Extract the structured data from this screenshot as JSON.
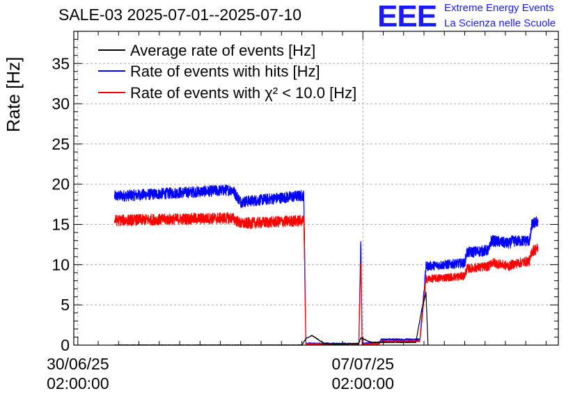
{
  "chart_data": {
    "type": "line",
    "title": "SALE-03 2025-07-01--2025-07-10",
    "ylabel": "Rate [Hz]",
    "xlabel": "",
    "ylim": [
      0,
      39
    ],
    "yticks": [
      0,
      5,
      10,
      15,
      20,
      25,
      30,
      35
    ],
    "x_tick_labels": [
      {
        "date": "30/06/25",
        "time": "02:00:00",
        "day": 0
      },
      {
        "date": "07/07/25",
        "time": "02:00:00",
        "day": 7
      }
    ],
    "xlim_days": [
      -0.1,
      11.8
    ],
    "grid": true,
    "legend_position": "top-left",
    "series": [
      {
        "name": "Average rate of events [Hz]",
        "color": "#000000",
        "noise": 0.3,
        "points": [
          [
            0.9,
            0
          ],
          [
            5.5,
            0
          ],
          [
            5.6,
            0.8
          ],
          [
            5.75,
            1.2
          ],
          [
            5.9,
            0.7
          ],
          [
            6.05,
            0.2
          ],
          [
            6.45,
            0.15
          ],
          [
            6.9,
            0.2
          ],
          [
            6.95,
            0.9
          ],
          [
            7.2,
            0.35
          ],
          [
            8.3,
            0.35
          ],
          [
            8.45,
            4.5
          ],
          [
            8.55,
            6.5
          ],
          [
            8.6,
            0
          ]
        ]
      },
      {
        "name": "Rate of events with hits [Hz]",
        "color": "#0000ff",
        "noise": 0.7,
        "points": [
          [
            0.9,
            18.5
          ],
          [
            3.8,
            19.3
          ],
          [
            4.0,
            17.8
          ],
          [
            5.55,
            18.6
          ],
          [
            5.6,
            0.2
          ],
          [
            6.9,
            0.15
          ],
          [
            6.95,
            13.5
          ],
          [
            6.98,
            0.2
          ],
          [
            7.4,
            0.3
          ],
          [
            7.45,
            0.7
          ],
          [
            8.4,
            0.7
          ],
          [
            8.55,
            9.8
          ],
          [
            9.5,
            10.2
          ],
          [
            9.55,
            11.5
          ],
          [
            10.1,
            11.8
          ],
          [
            10.15,
            13.0
          ],
          [
            10.6,
            12.6
          ],
          [
            10.65,
            12.9
          ],
          [
            11.1,
            13.0
          ],
          [
            11.15,
            15.0
          ],
          [
            11.3,
            15.4
          ]
        ]
      },
      {
        "name": "Rate of events with χ² < 10.0 [Hz]",
        "color": "#ff0000",
        "noise": 0.7,
        "points": [
          [
            0.9,
            15.5
          ],
          [
            3.8,
            15.8
          ],
          [
            4.0,
            15.1
          ],
          [
            5.55,
            15.5
          ],
          [
            5.6,
            0.15
          ],
          [
            6.9,
            0.1
          ],
          [
            6.95,
            11.0
          ],
          [
            6.98,
            0.1
          ],
          [
            7.4,
            0.2
          ],
          [
            7.45,
            0.5
          ],
          [
            8.4,
            0.5
          ],
          [
            8.55,
            8.2
          ],
          [
            9.5,
            8.6
          ],
          [
            9.55,
            9.5
          ],
          [
            10.1,
            9.8
          ],
          [
            10.15,
            10.3
          ],
          [
            10.6,
            9.8
          ],
          [
            10.65,
            10.0
          ],
          [
            11.1,
            10.5
          ],
          [
            11.15,
            11.7
          ],
          [
            11.3,
            12.0
          ]
        ]
      }
    ]
  },
  "legend": [
    {
      "label": "Average rate of events [Hz]",
      "color": "#000000"
    },
    {
      "label": "Rate of events with hits [Hz]",
      "color": "#0000ff"
    },
    {
      "label": "Rate of events with χ² < 10.0 [Hz]",
      "color": "#ff0000"
    }
  ],
  "logo": {
    "mark": "EEE",
    "line1": "Extreme Energy Events",
    "line2": "La Scienza nelle Scuole"
  }
}
